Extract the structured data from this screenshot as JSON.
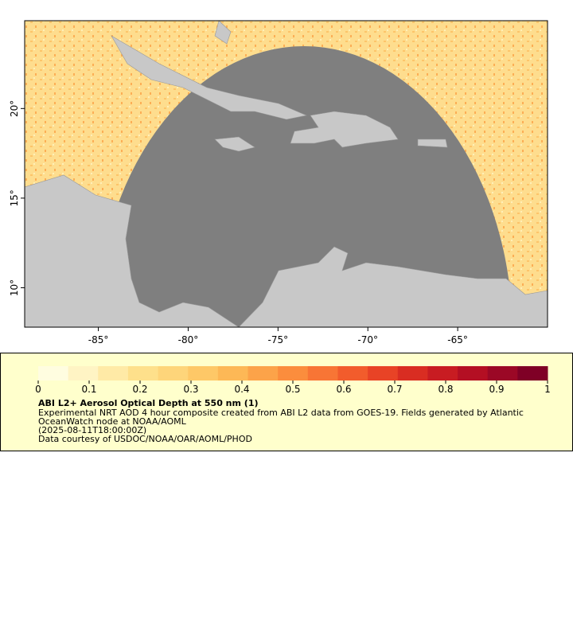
{
  "map": {
    "xlim": [
      -89.1,
      -60
    ],
    "ylim": [
      7.8,
      24.9
    ],
    "lon_ticks": [
      {
        "value": -85,
        "label": "-85°"
      },
      {
        "value": -80,
        "label": "-80°"
      },
      {
        "value": -75,
        "label": "-75°"
      },
      {
        "value": -70,
        "label": "-70°"
      },
      {
        "value": -65,
        "label": "-65°"
      }
    ],
    "lat_ticks": [
      {
        "value": 10,
        "label": "10°"
      },
      {
        "value": 15,
        "label": "15°"
      },
      {
        "value": 20,
        "label": "20°"
      }
    ]
  },
  "colorbar": {
    "lim": [
      0,
      1
    ],
    "ticks": [
      0,
      0.1,
      0.2,
      0.3,
      0.4,
      0.5,
      0.6,
      0.7,
      0.8,
      0.9,
      1
    ],
    "colors": [
      "#fffde0",
      "#fff4c4",
      "#ffeaa6",
      "#fee08b",
      "#fed57a",
      "#fec867",
      "#fdb856",
      "#fca349",
      "#fb8d3d",
      "#f87535",
      "#f25c2c",
      "#e84326",
      "#d92d22",
      "#c81c22",
      "#b40f23",
      "#9b0826",
      "#7f0026"
    ]
  },
  "caption": {
    "title": "ABI L2+ Aerosol Optical Depth at 550 nm (1)",
    "lines": [
      "Experimental NRT AOD 4 hour composite created from ABI L2 data from GOES-19. Fields generated by Atlantic",
      "OceanWatch node at NOAA/AOML",
      "(2025-08-11T18:00:00Z)",
      "Data courtesy of USDOC/NOAA/OAR/AOML/PHOD"
    ]
  }
}
